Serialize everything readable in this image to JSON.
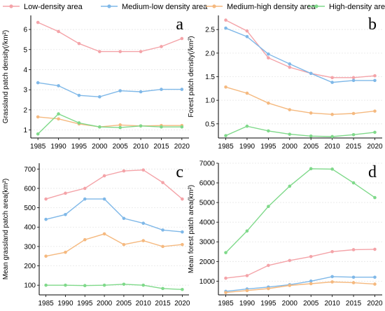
{
  "legend": [
    {
      "label": "Low-density area",
      "color": "#f4a3a8"
    },
    {
      "label": "Medium-low density area",
      "color": "#7fb8e8"
    },
    {
      "label": "Medium-high density area",
      "color": "#f5b97f"
    },
    {
      "label": "High-density area",
      "color": "#7fd98a"
    }
  ],
  "chart_data": [
    {
      "type": "line",
      "panel": "a",
      "ylabel": "Grassland patch density(/km²)",
      "x": [
        1985,
        1990,
        1995,
        2000,
        2005,
        2010,
        2015,
        2020
      ],
      "ylim": [
        0.6,
        6.7
      ],
      "yticks": [
        1,
        2,
        3,
        4,
        5,
        6
      ],
      "series": [
        {
          "name": "Low-density area",
          "values": [
            6.35,
            5.9,
            5.3,
            4.9,
            4.9,
            4.9,
            5.15,
            5.55
          ]
        },
        {
          "name": "Medium-low density area",
          "values": [
            3.35,
            3.2,
            2.72,
            2.65,
            2.95,
            2.9,
            3.02,
            3.02
          ]
        },
        {
          "name": "Medium-high density area",
          "values": [
            1.65,
            1.55,
            1.3,
            1.15,
            1.25,
            1.2,
            1.22,
            1.22
          ]
        },
        {
          "name": "High-density area",
          "values": [
            0.8,
            1.8,
            1.35,
            1.15,
            1.12,
            1.2,
            1.15,
            1.15
          ]
        }
      ]
    },
    {
      "type": "line",
      "panel": "b",
      "ylabel": "Forest patch density(/km²)",
      "x": [
        1985,
        1990,
        1995,
        2000,
        2005,
        2010,
        2015,
        2020
      ],
      "ylim": [
        0.2,
        2.8
      ],
      "yticks": [
        0.5,
        1.0,
        1.5,
        2.0,
        2.5
      ],
      "series": [
        {
          "name": "Low-density area",
          "values": [
            2.7,
            2.47,
            1.9,
            1.7,
            1.57,
            1.48,
            1.48,
            1.52
          ]
        },
        {
          "name": "Medium-low density area",
          "values": [
            2.53,
            2.35,
            1.98,
            1.77,
            1.57,
            1.38,
            1.42,
            1.42
          ]
        },
        {
          "name": "Medium-high density area",
          "values": [
            1.28,
            1.15,
            0.94,
            0.8,
            0.73,
            0.7,
            0.72,
            0.77
          ]
        },
        {
          "name": "High-density area",
          "values": [
            0.25,
            0.45,
            0.35,
            0.28,
            0.24,
            0.23,
            0.27,
            0.32
          ]
        }
      ]
    },
    {
      "type": "line",
      "panel": "c",
      "ylabel": "Mean grassland patch area(km²)",
      "x": [
        1985,
        1990,
        1995,
        2000,
        2005,
        2010,
        2015,
        2020
      ],
      "ylim": [
        50,
        730
      ],
      "yticks": [
        100,
        200,
        300,
        400,
        500,
        600,
        700
      ],
      "series": [
        {
          "name": "Low-density area",
          "values": [
            545,
            575,
            600,
            665,
            690,
            695,
            630,
            545
          ]
        },
        {
          "name": "Medium-low density area",
          "values": [
            440,
            465,
            545,
            545,
            445,
            420,
            385,
            375
          ]
        },
        {
          "name": "Medium-high density area",
          "values": [
            250,
            270,
            335,
            365,
            310,
            330,
            300,
            310
          ]
        },
        {
          "name": "High-density area",
          "values": [
            100,
            100,
            98,
            100,
            105,
            100,
            83,
            78
          ]
        }
      ]
    },
    {
      "type": "line",
      "panel": "d",
      "ylabel": "Mean forest patch area(km²)",
      "x": [
        1985,
        1990,
        1995,
        2000,
        2005,
        2010,
        2015,
        2020
      ],
      "ylim": [
        300,
        7000
      ],
      "yticks": [
        1000,
        2000,
        3000,
        4000,
        5000,
        6000,
        7000
      ],
      "series": [
        {
          "name": "Low-density area",
          "values": [
            1150,
            1280,
            1800,
            2050,
            2250,
            2500,
            2600,
            2620
          ]
        },
        {
          "name": "Medium-low density area",
          "values": [
            480,
            600,
            700,
            820,
            1000,
            1230,
            1200,
            1200
          ]
        },
        {
          "name": "Medium-high density area",
          "values": [
            420,
            520,
            620,
            780,
            870,
            960,
            920,
            850
          ]
        },
        {
          "name": "High-density area",
          "values": [
            2450,
            3550,
            4800,
            5830,
            6720,
            6700,
            6000,
            5250
          ]
        }
      ]
    }
  ]
}
